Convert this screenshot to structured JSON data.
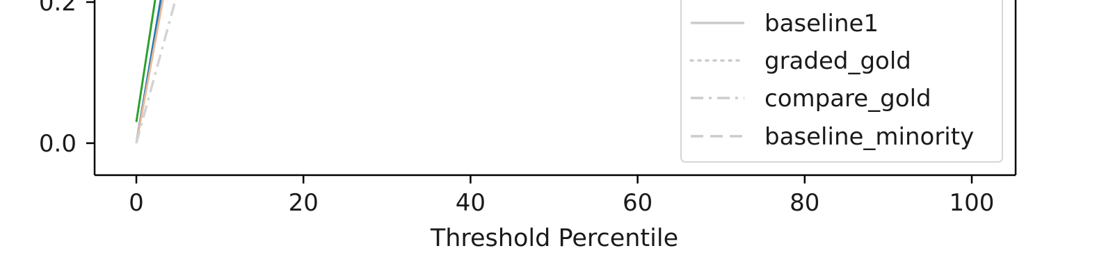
{
  "chart_data": {
    "type": "line",
    "title": "",
    "xlabel": "Threshold Percentile",
    "ylabel": "",
    "xlim": [
      -5,
      105
    ],
    "x_ticks": [
      0,
      20,
      40,
      60,
      80,
      100
    ],
    "y_ticks_visible": [
      0.0,
      0.2
    ],
    "y_tick_labels": [
      "0.0",
      "0.2"
    ],
    "grid": false,
    "legend_position": "right",
    "series": [
      {
        "name": "",
        "color": "#1f77b4",
        "dash": "solid",
        "x": [
          0,
          3.3
        ],
        "y": [
          0.0,
          0.23
        ]
      },
      {
        "name": "",
        "color": "#2ca02c",
        "dash": "solid",
        "x": [
          0,
          2.6
        ],
        "y": [
          0.03,
          0.23
        ]
      },
      {
        "name": "",
        "color": "#e8b89a",
        "dash": "solid",
        "x": [
          0,
          3.6
        ],
        "y": [
          0.0,
          0.23
        ]
      },
      {
        "name": "",
        "color": "#d3d3d3",
        "dash": "dashdot",
        "x": [
          0,
          5.3
        ],
        "y": [
          0.0,
          0.23
        ]
      }
    ],
    "legend": [
      {
        "label": "baseline1",
        "color": "#cccccc",
        "dash": "solid"
      },
      {
        "label": "graded_gold",
        "color": "#cccccc",
        "dash": "dotted"
      },
      {
        "label": "compare_gold",
        "color": "#cccccc",
        "dash": "dashdot"
      },
      {
        "label": "baseline_minority",
        "color": "#cccccc",
        "dash": "dashed"
      }
    ]
  }
}
